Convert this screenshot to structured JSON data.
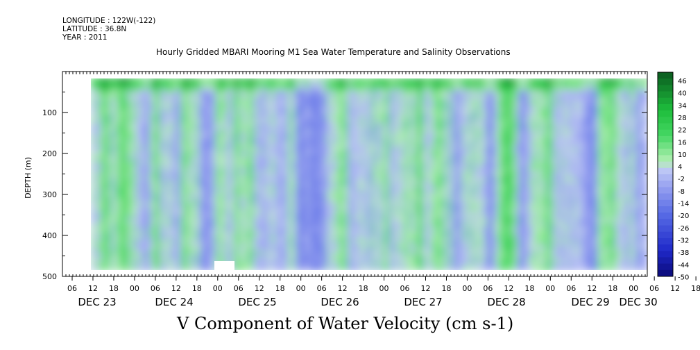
{
  "header": {
    "longitude": "LONGITUDE : 122W(-122)",
    "latitude": "LATITUDE : 36.8N",
    "year": "YEAR : 2011"
  },
  "chart_data": {
    "type": "heatmap",
    "title": "Hourly Gridded MBARI Mooring M1 Sea Water Temperature and Salinity Observations",
    "xlabel": "V Component of Water Velocity (cm s-1)",
    "ylabel": "DEPTH (m)",
    "ylim": [
      500,
      0
    ],
    "y_ticks": [
      100,
      200,
      300,
      400,
      500
    ],
    "x_hour_ticks": [
      "06",
      "12",
      "18",
      "00",
      "06",
      "12",
      "18",
      "00",
      "06",
      "12",
      "18",
      "00",
      "06",
      "12",
      "18",
      "00",
      "06",
      "12",
      "18",
      "00",
      "06",
      "12",
      "18",
      "00",
      "06",
      "12",
      "18",
      "00",
      "06",
      "12",
      "18",
      "00"
    ],
    "date_labels": [
      "DEC 23",
      "DEC 24",
      "DEC 25",
      "DEC 26",
      "DEC 27",
      "DEC 28",
      "DEC 29",
      "DEC 30"
    ],
    "colorbar": {
      "labels": [
        "46",
        "40",
        "34",
        "28",
        "22",
        "16",
        "10",
        "4",
        "-2",
        "-8",
        "-14",
        "-20",
        "-26",
        "-32",
        "-38",
        "-44",
        "-50"
      ],
      "range": [
        -50,
        46
      ],
      "step": 3
    },
    "colors": {
      "strong_positive": "#0a5a1e",
      "positive": "#1ec83c",
      "weak_positive": "#aaf0aa",
      "weak_negative": "#b4bcf4",
      "negative": "#6478e6",
      "strong_negative": "#0a0a78"
    }
  }
}
